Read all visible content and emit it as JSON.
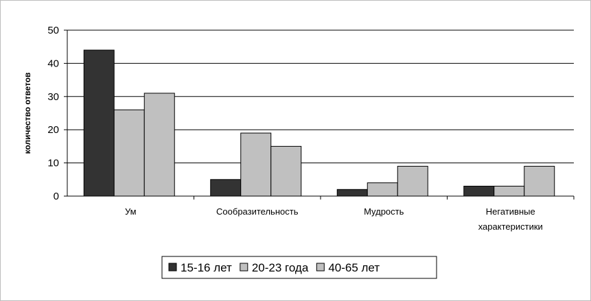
{
  "chart_data": {
    "type": "bar",
    "title": "",
    "xlabel": "",
    "ylabel": "количество ответов",
    "ylim": [
      0,
      50
    ],
    "yticks": [
      0,
      10,
      20,
      30,
      40,
      50
    ],
    "grid": "horizontal",
    "legend_position": "bottom",
    "categories": [
      [
        "Ум"
      ],
      [
        "Сообразительность"
      ],
      [
        "Мудрость"
      ],
      [
        "Негативные",
        "характеристики"
      ]
    ],
    "series": [
      {
        "name": "15-16 лет",
        "color": "#333333",
        "values": [
          44,
          5,
          2,
          3
        ]
      },
      {
        "name": "20-23 года",
        "color": "#c0c0c0",
        "values": [
          26,
          19,
          4,
          3
        ]
      },
      {
        "name": "40-65 лет",
        "color": "#c0c0c0",
        "values": [
          31,
          15,
          9,
          9
        ]
      }
    ]
  }
}
